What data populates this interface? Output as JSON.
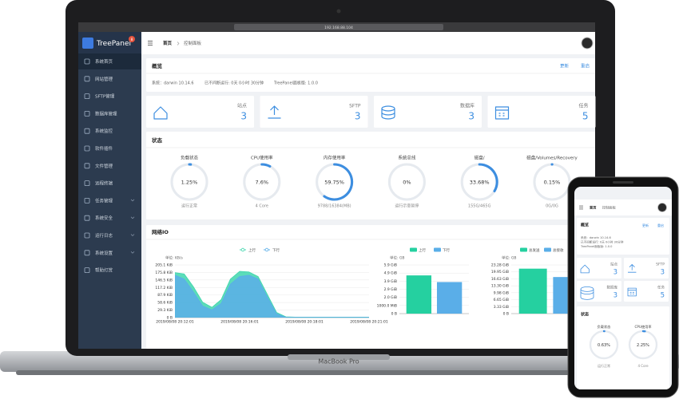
{
  "browser": {
    "url": "192.168.88.104"
  },
  "sidebar": {
    "brand": "TreePanel",
    "badge": "8",
    "items": [
      "系统首页",
      "网站管理",
      "SFTP管理",
      "数据库管理",
      "系统监控",
      "软件插件",
      "文件管理",
      "远程终端",
      "任务管理",
      "系统安全",
      "运行日志",
      "系统设置",
      "帮助打赏"
    ]
  },
  "breadcrumb": [
    "首页",
    "控制面板"
  ],
  "overview": {
    "title": "概览",
    "actions": [
      "更新",
      "重启"
    ],
    "info": [
      "系统：darwin 10.14.6",
      "已不间断运行: 0天 0小时 30分钟",
      "TreePanel面板版: 1.0.0"
    ]
  },
  "stats": [
    {
      "label": "站点",
      "value": 3
    },
    {
      "label": "SFTP",
      "value": 3
    },
    {
      "label": "数据库",
      "value": 3
    },
    {
      "label": "任务",
      "value": 5
    }
  ],
  "status": {
    "title": "状态",
    "gauges": [
      {
        "name": "负载状态",
        "value": 1.25,
        "label": "1.25%",
        "note": "运行正常"
      },
      {
        "name": "CPU使用率",
        "value": 7.6,
        "label": "7.6%",
        "note": "4 Core"
      },
      {
        "name": "内存使用率",
        "value": 59.75,
        "label": "59.75%",
        "note": "9788/16384(MB)"
      },
      {
        "name": "系统总线",
        "value": 0,
        "label": "0%",
        "note": "运行示意暂停"
      },
      {
        "name": "磁盘/",
        "value": 33.68,
        "label": "33.68%",
        "note": "155G/465G"
      },
      {
        "name": "磁盘/Volumes/Recovery",
        "value": 0.15,
        "label": "0.15%",
        "note": "0G/0G"
      }
    ]
  },
  "network": {
    "title": "网络IO",
    "traffic": {
      "type": "area",
      "unit": "单位: KB/s",
      "categories": [
        "2019/08/08 20:12:01",
        null,
        null,
        null,
        null,
        null,
        null,
        "2019/08/08 20:16:01",
        null,
        null,
        null,
        null,
        null,
        null,
        "2019/08/08 20:18:01",
        null,
        null,
        null,
        null,
        null,
        null,
        "2019/08/08 20:21:01"
      ],
      "series": [
        {
          "name": "上行",
          "color": "#3fd6ad",
          "values": [
            175,
            170,
            120,
            60,
            40,
            70,
            150,
            180,
            178,
            160,
            90,
            20,
            3,
            2,
            2,
            2,
            2,
            2,
            2,
            2,
            2,
            2
          ]
        },
        {
          "name": "下行",
          "color": "#5aaee8",
          "values": [
            165,
            150,
            100,
            45,
            30,
            55,
            130,
            160,
            165,
            150,
            80,
            15,
            1,
            1,
            1,
            1,
            1,
            1,
            1,
            1,
            1,
            1
          ]
        }
      ],
      "ylim": [
        0,
        205.1
      ],
      "yticks": [
        {
          "value": 0,
          "label": "0 B"
        },
        {
          "value": 29.3,
          "label": "29.3 KiB"
        },
        {
          "value": 58.6,
          "label": "58.6 KiB"
        },
        {
          "value": 87.9,
          "label": "87.9 KiB"
        },
        {
          "value": 117.2,
          "label": "117.2 KiB"
        },
        {
          "value": 146.5,
          "label": "146.5 KiB"
        },
        {
          "value": 175.8,
          "label": "175.8 KiB"
        },
        {
          "value": 205.1,
          "label": "205.1 KiB"
        }
      ]
    },
    "disk": {
      "type": "bar",
      "unit": "单位: GB",
      "series": [
        {
          "name": "上行",
          "color": "#25d0a0",
          "values": [
            4.6
          ]
        },
        {
          "name": "下行",
          "color": "#5aaee8",
          "values": [
            3.8
          ]
        }
      ],
      "ylim": [
        0,
        5.86
      ],
      "yticks": [
        {
          "value": 0,
          "label": "0 B"
        },
        {
          "value": 0.9766,
          "label": "1000.0 MiB"
        },
        {
          "value": 1.95,
          "label": "2.0 GiB"
        },
        {
          "value": 2.93,
          "label": "2.9 GiB"
        },
        {
          "value": 3.9,
          "label": "3.9 GiB"
        },
        {
          "value": 4.88,
          "label": "4.9 GiB"
        },
        {
          "value": 5.86,
          "label": "5.9 GiB"
        }
      ]
    },
    "total": {
      "type": "bar",
      "unit": "单位: GB",
      "series": [
        {
          "name": "总发送",
          "color": "#25d0a0",
          "values": [
            21.5
          ]
        },
        {
          "name": "总接收",
          "color": "#5aaee8",
          "values": [
            17.5
          ]
        }
      ],
      "ylim": [
        0,
        23.28
      ],
      "yticks": [
        {
          "value": 0,
          "label": "0 B"
        },
        {
          "value": 3.33,
          "label": "3.33 GiB"
        },
        {
          "value": 6.65,
          "label": "6.65 GiB"
        },
        {
          "value": 9.98,
          "label": "9.98 GiB"
        },
        {
          "value": 13.3,
          "label": "13.30 GiB"
        },
        {
          "value": 16.63,
          "label": "16.63 GiB"
        },
        {
          "value": 19.95,
          "label": "19.95 GiB"
        },
        {
          "value": 23.28,
          "label": "23.28 GiB"
        }
      ]
    }
  },
  "laptop_label": "MacBook Pro",
  "phone": {
    "breadcrumb": [
      "首页",
      "控制面板"
    ],
    "overview": {
      "title": "概览",
      "actions": [
        "更新",
        "重启"
      ],
      "info": [
        "系统：darwin 10.14.6",
        "已不间断运行: 0天 0小时 30分钟",
        "TreePanel面板版: 1.0.0"
      ]
    },
    "stats": [
      {
        "label": "站点",
        "value": 3
      },
      {
        "label": "SFTP",
        "value": 3
      },
      {
        "label": "数据库",
        "value": 3
      },
      {
        "label": "任务",
        "value": 5
      }
    ],
    "status": {
      "title": "状态",
      "gauges": [
        {
          "name": "负载状态",
          "value": 0.63,
          "label": "0.63%",
          "note": "运行正常"
        },
        {
          "name": "CPU使用率",
          "value": 2.25,
          "label": "2.25%",
          "note": "4 Core"
        }
      ]
    }
  }
}
